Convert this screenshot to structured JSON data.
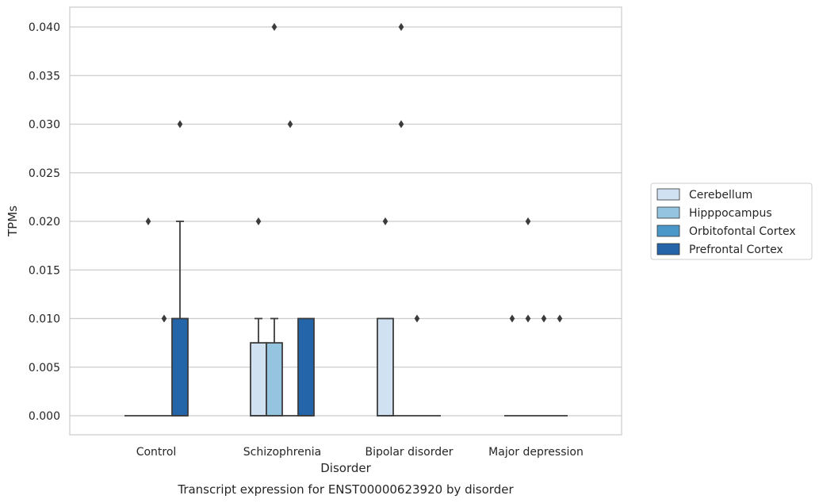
{
  "chart_data": {
    "type": "box",
    "title": "",
    "caption": "Transcript expression for ENST00000623920 by disorder",
    "xlabel": "Disorder",
    "ylabel": "TPMs",
    "ylim": [
      -0.002,
      0.042
    ],
    "yticks": [
      "0.000",
      "0.005",
      "0.010",
      "0.015",
      "0.020",
      "0.025",
      "0.030",
      "0.035",
      "0.040"
    ],
    "ytick_values": [
      0,
      0.005,
      0.01,
      0.015,
      0.02,
      0.025,
      0.03,
      0.035,
      0.04
    ],
    "grid": "horizontal",
    "legend_position": "right",
    "categories": [
      "Control",
      "Schizophrenia",
      "Bipolar disorder",
      "Major depression"
    ],
    "series": [
      {
        "name": "Cerebellum",
        "color": "#d0e1f2",
        "boxes": [
          {
            "q1": 0,
            "median": 0,
            "q3": 0,
            "whislo": 0,
            "whishi": 0,
            "fliers": []
          },
          {
            "q1": 0,
            "median": 0,
            "q3": 0.0075,
            "whislo": 0,
            "whishi": 0.01,
            "fliers": [
              0.02
            ]
          },
          {
            "q1": 0,
            "median": 0,
            "q3": 0.01,
            "whislo": 0,
            "whishi": 0.01,
            "fliers": [
              0.02
            ]
          },
          {
            "q1": 0,
            "median": 0,
            "q3": 0,
            "whislo": 0,
            "whishi": 0,
            "fliers": [
              0.01
            ]
          }
        ]
      },
      {
        "name": "Hipppocampus",
        "color": "#94c4df",
        "boxes": [
          {
            "q1": 0,
            "median": 0,
            "q3": 0,
            "whislo": 0,
            "whishi": 0,
            "fliers": [
              0.02
            ]
          },
          {
            "q1": 0,
            "median": 0,
            "q3": 0.0075,
            "whislo": 0,
            "whishi": 0.01,
            "fliers": [
              0.04
            ]
          },
          {
            "q1": 0,
            "median": 0,
            "q3": 0,
            "whislo": 0,
            "whishi": 0,
            "fliers": [
              0.04,
              0.03
            ]
          },
          {
            "q1": 0,
            "median": 0,
            "q3": 0,
            "whislo": 0,
            "whishi": 0,
            "fliers": [
              0.01,
              0.02
            ]
          }
        ]
      },
      {
        "name": "Orbitofontal Cortex",
        "color": "#4a98c9",
        "boxes": [
          {
            "q1": 0,
            "median": 0,
            "q3": 0,
            "whislo": 0,
            "whishi": 0,
            "fliers": [
              0.01
            ]
          },
          {
            "q1": 0,
            "median": 0,
            "q3": 0,
            "whislo": 0,
            "whishi": 0,
            "fliers": [
              0.03
            ]
          },
          {
            "q1": 0,
            "median": 0,
            "q3": 0,
            "whislo": 0,
            "whishi": 0,
            "fliers": [
              0.01
            ]
          },
          {
            "q1": 0,
            "median": 0,
            "q3": 0,
            "whislo": 0,
            "whishi": 0,
            "fliers": [
              0.01
            ]
          }
        ]
      },
      {
        "name": "Prefrontal Cortex",
        "color": "#2464a8",
        "boxes": [
          {
            "q1": 0,
            "median": 0,
            "q3": 0.01,
            "whislo": 0,
            "whishi": 0.02,
            "fliers": [
              0.03
            ]
          },
          {
            "q1": 0,
            "median": 0,
            "q3": 0.01,
            "whislo": 0,
            "whishi": 0.01,
            "fliers": []
          },
          {
            "q1": 0,
            "median": 0,
            "q3": 0,
            "whislo": 0,
            "whishi": 0,
            "fliers": []
          },
          {
            "q1": 0,
            "median": 0,
            "q3": 0,
            "whislo": 0,
            "whishi": 0,
            "fliers": [
              0.01
            ]
          }
        ]
      }
    ]
  }
}
